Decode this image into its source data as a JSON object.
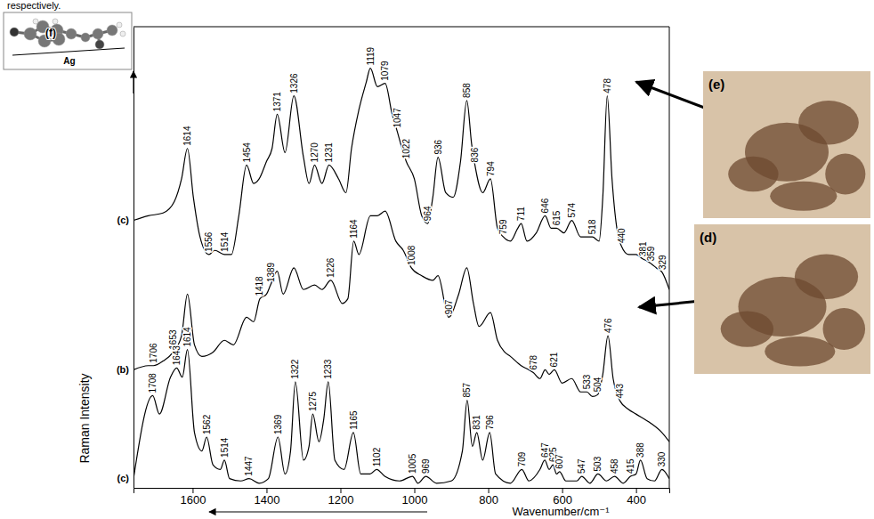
{
  "chart_data": {
    "type": "line",
    "x_label": "Wavenumber/cm⁻¹",
    "y_label": "Raman Intensity",
    "xlim": [
      1760,
      310
    ],
    "xticks": [
      1600,
      1400,
      1200,
      1000,
      800,
      600,
      400
    ],
    "ylim": [
      0,
      100
    ],
    "yticks": [],
    "tick_labels": "x",
    "grid": false,
    "series": [
      {
        "name": "(c)",
        "color": "#000000",
        "x": [
          1760,
          1720,
          1680,
          1650,
          1630,
          1614,
          1598,
          1580,
          1556,
          1540,
          1514,
          1495,
          1475,
          1454,
          1435,
          1420,
          1400,
          1385,
          1371,
          1350,
          1326,
          1300,
          1285,
          1270,
          1250,
          1231,
          1205,
          1185,
          1170,
          1150,
          1130,
          1119,
          1100,
          1079,
          1060,
          1047,
          1030,
          1022,
          1000,
          980,
          964,
          950,
          936,
          915,
          895,
          875,
          858,
          845,
          836,
          815,
          794,
          775,
          759,
          740,
          720,
          711,
          695,
          670,
          646,
          630,
          615,
          595,
          574,
          550,
          535,
          518,
          500,
          490,
          478,
          465,
          450,
          440,
          420,
          400,
          381,
          370,
          359,
          345,
          329,
          310
        ],
        "values": [
          58,
          59,
          59.6,
          62,
          67,
          73.6,
          63,
          54.4,
          50.6,
          51.5,
          50.6,
          50.6,
          59,
          70,
          66,
          67,
          70.8,
          73.6,
          81,
          72.7,
          85,
          71.7,
          66,
          70,
          66,
          70,
          67,
          64,
          73.6,
          82,
          88,
          91,
          87,
          87.7,
          81,
          77.5,
          72.7,
          70.8,
          67,
          59,
          57.3,
          63,
          71.7,
          64,
          63,
          70.8,
          84,
          74.6,
          70,
          64,
          67,
          56.3,
          54.4,
          53.5,
          56.3,
          57.3,
          53.5,
          55.3,
          59,
          56.3,
          56.3,
          55.3,
          58,
          54.4,
          54.4,
          54.4,
          53.5,
          63,
          85,
          67,
          55.3,
          52.5,
          50.6,
          50.6,
          49.6,
          49.2,
          48.6,
          47.7,
          46.7,
          43
        ],
        "peak_labels": [
          1614,
          1556,
          1514,
          1454,
          1371,
          1326,
          1270,
          1231,
          1119,
          1079,
          1047,
          1022,
          964,
          936,
          858,
          836,
          794,
          759,
          711,
          646,
          615,
          574,
          518,
          478,
          440,
          381,
          359,
          329
        ]
      },
      {
        "name": "(b)",
        "color": "#000000",
        "x": [
          1760,
          1720,
          1706,
          1680,
          1653,
          1630,
          1614,
          1595,
          1575,
          1545,
          1514,
          1490,
          1454,
          1435,
          1418,
          1400,
          1389,
          1371,
          1355,
          1326,
          1300,
          1270,
          1250,
          1226,
          1195,
          1180,
          1164,
          1150,
          1119,
          1100,
          1079,
          1050,
          1030,
          1008,
          980,
          950,
          936,
          907,
          880,
          858,
          840,
          825,
          794,
          775,
          755,
          740,
          711,
          690,
          678,
          660,
          646,
          635,
          621,
          600,
          574,
          550,
          533,
          518,
          504,
          490,
          476,
          462,
          443,
          420,
          400,
          360,
          330,
          310
        ],
        "values": [
          25.6,
          26.5,
          26.5,
          27.5,
          29.4,
          33,
          42,
          31,
          28.5,
          29.4,
          32,
          31,
          37,
          36,
          41,
          42,
          44,
          47,
          42,
          47.7,
          43,
          44,
          43,
          45,
          40,
          41,
          53.5,
          50.6,
          59,
          59,
          60,
          53.5,
          51.5,
          47.7,
          46,
          45,
          46,
          37,
          42,
          47.7,
          40,
          35,
          38,
          32,
          29.4,
          28.5,
          26.5,
          25.6,
          25,
          23.7,
          25.6,
          24.6,
          25.6,
          22.7,
          23.7,
          20.8,
          20.8,
          19.8,
          20.2,
          24.6,
          33,
          23.7,
          18.8,
          17,
          16,
          14,
          12,
          10
        ],
        "peak_labels": [
          1706,
          1653,
          1418,
          1389,
          1226,
          1164,
          1008,
          907,
          678,
          621,
          533,
          504,
          476,
          443
        ]
      },
      {
        "name": "(c)",
        "color": "#000000",
        "x": [
          1760,
          1708,
          1690,
          1660,
          1643,
          1628,
          1614,
          1595,
          1575,
          1562,
          1545,
          1525,
          1514,
          1500,
          1470,
          1447,
          1420,
          1395,
          1369,
          1350,
          1335,
          1322,
          1300,
          1285,
          1275,
          1258,
          1245,
          1233,
          1215,
          1190,
          1165,
          1145,
          1120,
          1102,
          1080,
          1040,
          1005,
          990,
          969,
          940,
          900,
          870,
          857,
          843,
          831,
          815,
          796,
          780,
          740,
          709,
          690,
          660,
          647,
          635,
          625,
          615,
          607,
          590,
          560,
          547,
          525,
          503,
          480,
          458,
          435,
          415,
          400,
          388,
          370,
          350,
          330,
          310
        ],
        "values": [
          2,
          20,
          16,
          24,
          26,
          24,
          30,
          12,
          8,
          11,
          5,
          4,
          6,
          2,
          1.5,
          2,
          1,
          2,
          11,
          3,
          8,
          23,
          6,
          9,
          16,
          10,
          15,
          23,
          6,
          4,
          12,
          3,
          3,
          4,
          2.5,
          1.5,
          2.5,
          1,
          2.5,
          1,
          1.5,
          8,
          19,
          9,
          12,
          6,
          12,
          3,
          1,
          4,
          1.5,
          4,
          6,
          4,
          5,
          3,
          3.5,
          1.5,
          1.5,
          2.5,
          1,
          3,
          1.5,
          2.5,
          1,
          2.5,
          3,
          6,
          2,
          1.5,
          4,
          2
        ],
        "peak_labels": [
          1708,
          1643,
          1614,
          1562,
          1514,
          1447,
          1369,
          1322,
          1275,
          1233,
          1165,
          1102,
          1005,
          969,
          857,
          831,
          796,
          709,
          647,
          625,
          607,
          547,
          503,
          458,
          415,
          388,
          330
        ]
      }
    ]
  },
  "caption_fragment": "respectively.",
  "inset": {
    "label": "(f)",
    "surface": "Ag"
  },
  "images": [
    {
      "label": "(e)"
    },
    {
      "label": "(d)"
    }
  ]
}
